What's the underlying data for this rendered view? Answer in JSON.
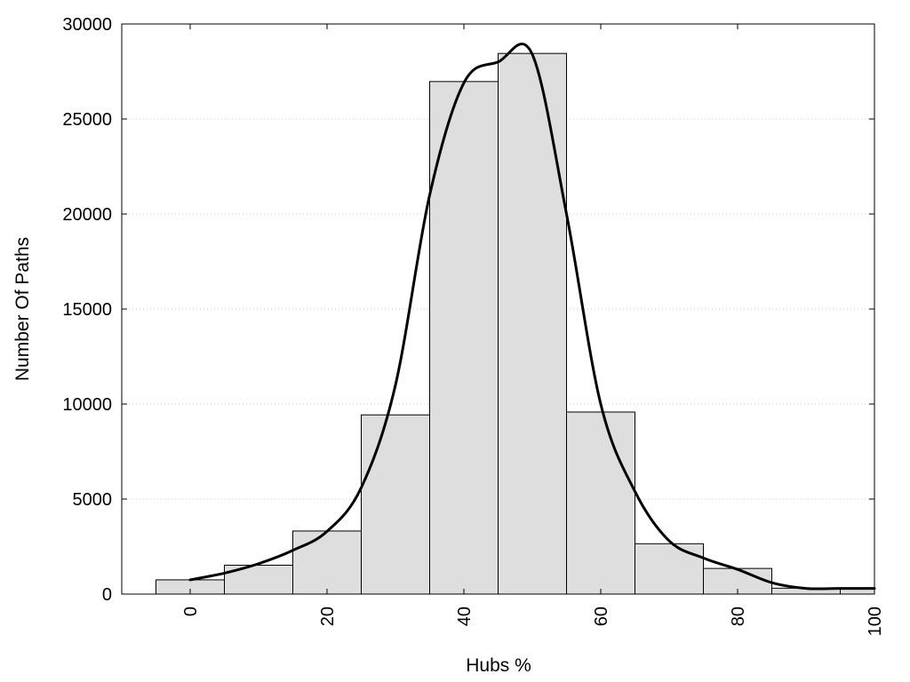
{
  "chart_data": {
    "type": "bar",
    "xlabel": "Hubs %",
    "ylabel": "Number Of Paths",
    "xlim": [
      -10,
      100
    ],
    "ylim": [
      0,
      30000
    ],
    "xticks": [
      0,
      20,
      40,
      60,
      80,
      100
    ],
    "yticks": [
      0,
      5000,
      10000,
      15000,
      20000,
      25000,
      30000
    ],
    "grid": "horizontal dotted",
    "legend": "none",
    "bin_width": 10,
    "series": [
      {
        "type": "bar",
        "x": [
          0,
          10,
          20,
          30,
          40,
          50,
          60,
          70,
          80,
          90,
          100
        ],
        "values": [
          750,
          1520,
          3320,
          9430,
          26970,
          28450,
          9580,
          2650,
          1350,
          310,
          310
        ]
      },
      {
        "type": "line",
        "x": [
          0,
          5,
          10,
          15,
          20,
          25,
          30,
          35,
          40,
          45,
          50,
          55,
          60,
          65,
          70,
          75,
          80,
          85,
          90,
          95,
          100
        ],
        "values": [
          750,
          1100,
          1600,
          2300,
          3300,
          5600,
          11000,
          21000,
          26900,
          28000,
          28400,
          20000,
          10000,
          5400,
          2800,
          1900,
          1300,
          600,
          300,
          300,
          300
        ]
      }
    ],
    "colors": {
      "bar_fill": "#dedede",
      "bar_stroke": "#000000",
      "line": "#000000"
    }
  }
}
